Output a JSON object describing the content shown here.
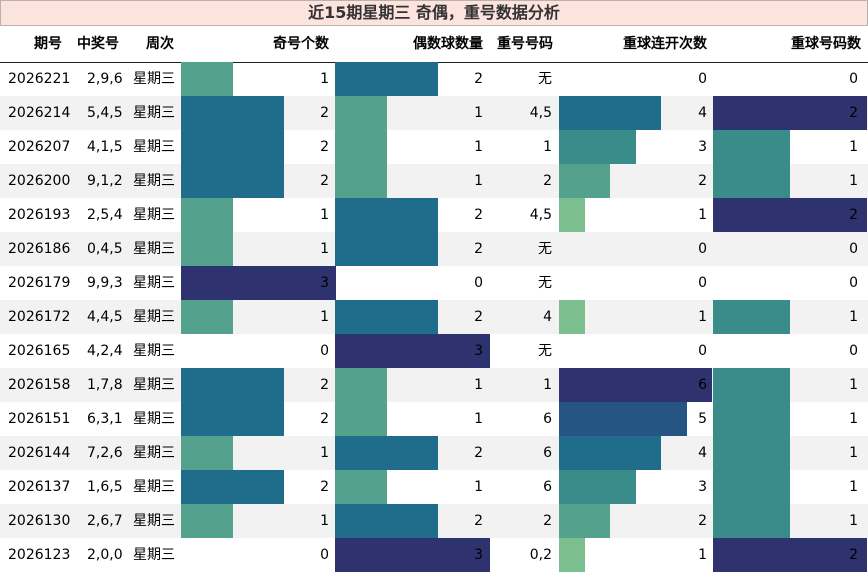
{
  "title": "近15期星期三 奇偶，重号数据分析",
  "headers": {
    "period": "期号",
    "numbers": "中奖号",
    "weekday": "周次",
    "odd_count": "奇号个数",
    "even_count": "偶数球数量",
    "repeat_numbers": "重号号码",
    "repeat_streak": "重球连开次数",
    "repeat_count": "重球号码数"
  },
  "colors": {
    "level_1_light": "#7bbf8f",
    "level_2_teal_green": "#54a18d",
    "level_3_teal": "#3a8c8a",
    "level_4_steel_blue": "#1f6d8a",
    "level_5_navy_blue": "#265584",
    "level_6_indigo": "#2e3370",
    "header_band": "#fde3de",
    "row_stripe": "#f2f2f2"
  },
  "rows": [
    {
      "period": "2026221",
      "numbers": "2,9,6",
      "weekday": "星期三",
      "odd": 1,
      "even": 2,
      "repeat_numbers": "无",
      "streak": 0,
      "repeat_count": 0
    },
    {
      "period": "2026214",
      "numbers": "5,4,5",
      "weekday": "星期三",
      "odd": 2,
      "even": 1,
      "repeat_numbers": "4,5",
      "streak": 4,
      "repeat_count": 2
    },
    {
      "period": "2026207",
      "numbers": "4,1,5",
      "weekday": "星期三",
      "odd": 2,
      "even": 1,
      "repeat_numbers": "1",
      "streak": 3,
      "repeat_count": 1
    },
    {
      "period": "2026200",
      "numbers": "9,1,2",
      "weekday": "星期三",
      "odd": 2,
      "even": 1,
      "repeat_numbers": "2",
      "streak": 2,
      "repeat_count": 1
    },
    {
      "period": "2026193",
      "numbers": "2,5,4",
      "weekday": "星期三",
      "odd": 1,
      "even": 2,
      "repeat_numbers": "4,5",
      "streak": 1,
      "repeat_count": 2
    },
    {
      "period": "2026186",
      "numbers": "0,4,5",
      "weekday": "星期三",
      "odd": 1,
      "even": 2,
      "repeat_numbers": "无",
      "streak": 0,
      "repeat_count": 0
    },
    {
      "period": "2026179",
      "numbers": "9,9,3",
      "weekday": "星期三",
      "odd": 3,
      "even": 0,
      "repeat_numbers": "无",
      "streak": 0,
      "repeat_count": 0
    },
    {
      "period": "2026172",
      "numbers": "4,4,5",
      "weekday": "星期三",
      "odd": 1,
      "even": 2,
      "repeat_numbers": "4",
      "streak": 1,
      "repeat_count": 1
    },
    {
      "period": "2026165",
      "numbers": "4,2,4",
      "weekday": "星期三",
      "odd": 0,
      "even": 3,
      "repeat_numbers": "无",
      "streak": 0,
      "repeat_count": 0
    },
    {
      "period": "2026158",
      "numbers": "1,7,8",
      "weekday": "星期三",
      "odd": 2,
      "even": 1,
      "repeat_numbers": "1",
      "streak": 6,
      "repeat_count": 1
    },
    {
      "period": "2026151",
      "numbers": "6,3,1",
      "weekday": "星期三",
      "odd": 2,
      "even": 1,
      "repeat_numbers": "6",
      "streak": 5,
      "repeat_count": 1
    },
    {
      "period": "2026144",
      "numbers": "7,2,6",
      "weekday": "星期三",
      "odd": 1,
      "even": 2,
      "repeat_numbers": "6",
      "streak": 4,
      "repeat_count": 1
    },
    {
      "period": "2026137",
      "numbers": "1,6,5",
      "weekday": "星期三",
      "odd": 2,
      "even": 1,
      "repeat_numbers": "6",
      "streak": 3,
      "repeat_count": 1
    },
    {
      "period": "2026130",
      "numbers": "2,6,7",
      "weekday": "星期三",
      "odd": 1,
      "even": 2,
      "repeat_numbers": "2",
      "streak": 2,
      "repeat_count": 1
    },
    {
      "period": "2026123",
      "numbers": "2,0,0",
      "weekday": "星期三",
      "odd": 0,
      "even": 3,
      "repeat_numbers": "0,2",
      "streak": 1,
      "repeat_count": 2
    }
  ]
}
